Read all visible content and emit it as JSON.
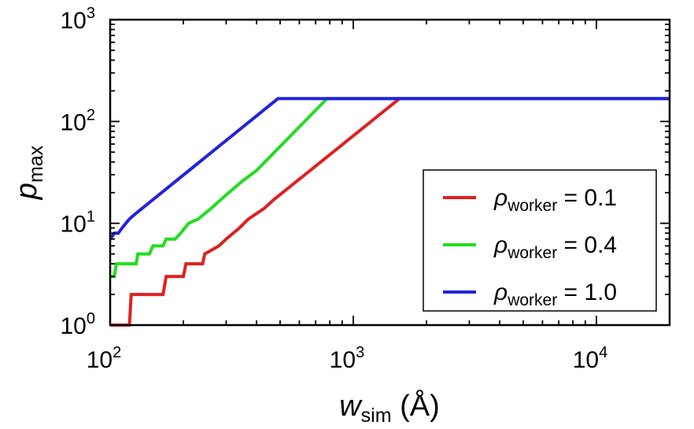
{
  "chart_data": {
    "type": "line",
    "title": "",
    "xlabel": "w_sim (Å)",
    "xlabel_parts": {
      "main": "w",
      "sub": "sim",
      "unit": " (Å)"
    },
    "ylabel": "p_max",
    "ylabel_parts": {
      "main": "p",
      "sub": "max"
    },
    "xscale": "log",
    "yscale": "log",
    "xlim": [
      100,
      20000
    ],
    "ylim": [
      1,
      1000
    ],
    "xticks": [
      {
        "value": 100,
        "base": "10",
        "exp": "2"
      },
      {
        "value": 1000,
        "base": "10",
        "exp": "3"
      },
      {
        "value": 10000,
        "base": "10",
        "exp": "4"
      }
    ],
    "yticks": [
      {
        "value": 1,
        "base": "10",
        "exp": "0"
      },
      {
        "value": 10,
        "base": "10",
        "exp": "1"
      },
      {
        "value": 100,
        "base": "10",
        "exp": "2"
      },
      {
        "value": 1000,
        "base": "10",
        "exp": "3"
      }
    ],
    "grid": false,
    "legend_position": "lower-right",
    "series": [
      {
        "name": "ρworker = 0.1",
        "label_parts": {
          "symbol": "ρ",
          "sub": "worker",
          "value": " = 0.1"
        },
        "color": "#e02020",
        "x": [
          100,
          120,
          122,
          125,
          165,
          170,
          200,
          205,
          240,
          245,
          280,
          300,
          340,
          370,
          430,
          470,
          1550,
          20000
        ],
        "y": [
          1,
          1,
          2,
          2,
          2,
          3,
          3,
          4,
          4,
          5,
          6,
          7,
          9,
          11,
          14,
          17,
          168,
          168
        ]
      },
      {
        "name": "ρworker = 0.4",
        "label_parts": {
          "symbol": "ρ",
          "sub": "worker",
          "value": " = 0.4"
        },
        "color": "#22dd22",
        "x": [
          100,
          104,
          106,
          128,
          130,
          145,
          150,
          165,
          170,
          185,
          195,
          210,
          230,
          260,
          300,
          350,
          400,
          780,
          20000
        ],
        "y": [
          3,
          3,
          4,
          4,
          5,
          5,
          6,
          6,
          7,
          7,
          8,
          10,
          11,
          14,
          19,
          26,
          33,
          168,
          168
        ]
      },
      {
        "name": "ρworker = 1.0",
        "label_parts": {
          "symbol": "ρ",
          "sub": "worker",
          "value": " = 1.0"
        },
        "color": "#2222dd",
        "x": [
          100,
          104,
          108,
          112,
          116,
          120,
          125,
          490,
          20000
        ],
        "y": [
          7,
          8,
          8,
          9,
          10,
          11,
          12,
          168,
          168
        ]
      }
    ]
  }
}
